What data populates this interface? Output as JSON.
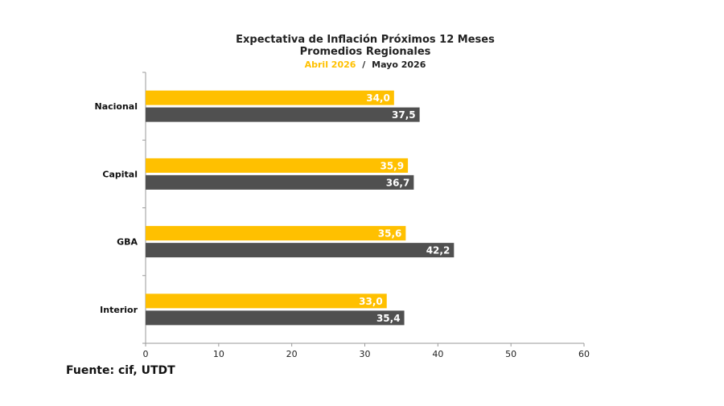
{
  "chart_data": {
    "type": "bar",
    "orientation": "horizontal",
    "title": "Expectativa de Inflación Próximos 12 Meses",
    "subtitle": "Promedios Regionales",
    "categories": [
      "Nacional",
      "Capital",
      "GBA",
      "Interior"
    ],
    "series": [
      {
        "name": "Abril 2026",
        "values": [
          34.0,
          35.9,
          35.6,
          33.0
        ],
        "labels": [
          "34,0",
          "35,9",
          "35,6",
          "33,0"
        ],
        "color": "#FFC000"
      },
      {
        "name": "Mayo 2026",
        "values": [
          37.5,
          36.7,
          42.2,
          35.4
        ],
        "labels": [
          "37,5",
          "36,7",
          "42,2",
          "35,4"
        ],
        "color": "#505050"
      }
    ],
    "legend_separator": "/",
    "xlim": [
      0,
      60
    ],
    "xticks": [
      0,
      10,
      20,
      30,
      40,
      50,
      60
    ],
    "grid": false
  },
  "source": {
    "prefix": "Fuente: ",
    "org": "cif",
    "suffix": ", UTDT"
  }
}
